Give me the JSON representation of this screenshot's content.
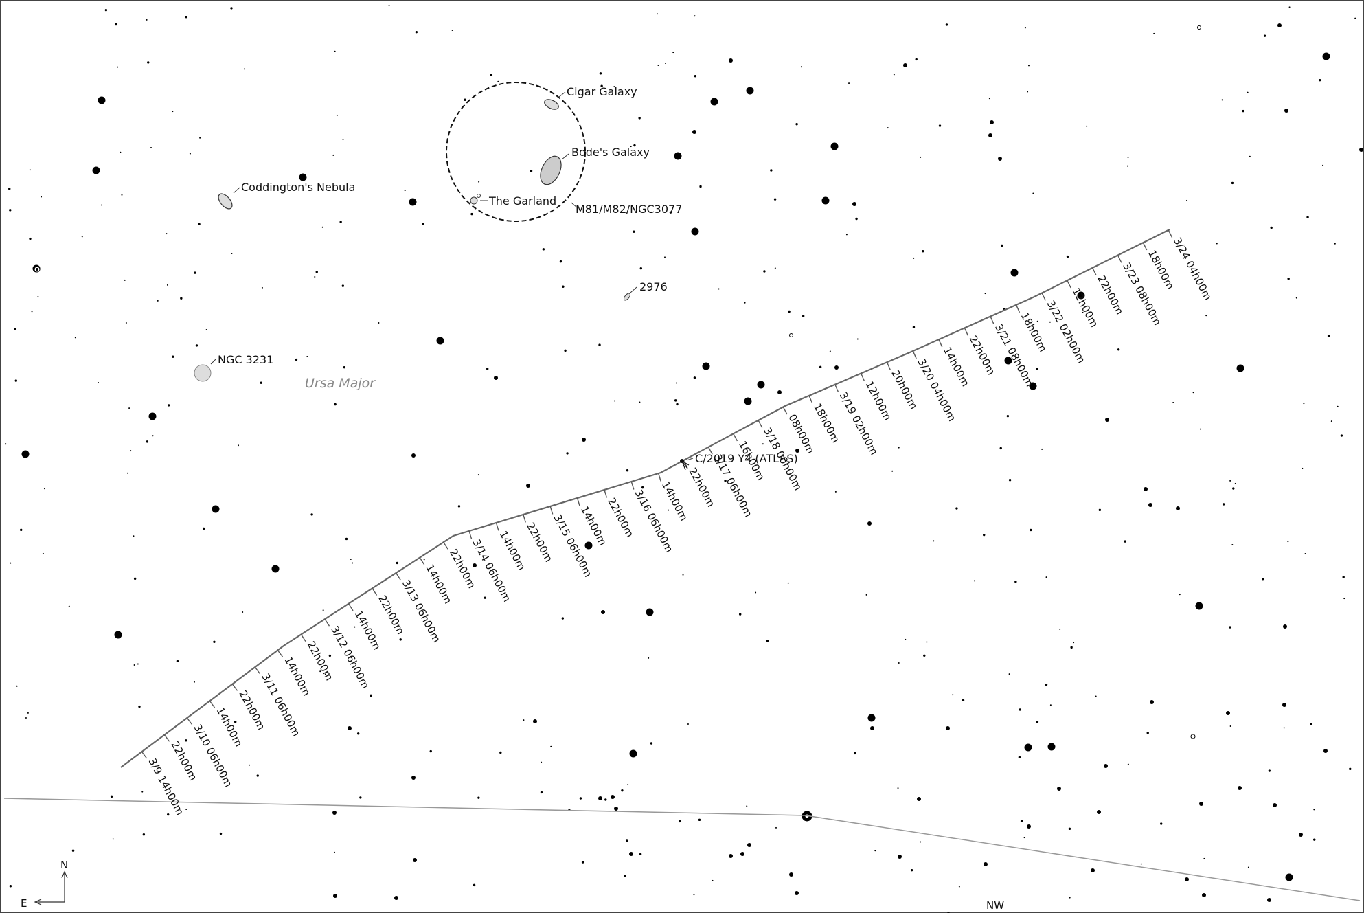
{
  "constellation": "Ursa Major",
  "comet": {
    "label": "C/2019 Y4 (ATLAS)"
  },
  "objects": [
    {
      "key": "cigar",
      "label": "Cigar Galaxy"
    },
    {
      "key": "bode",
      "label": "Bode's Galaxy"
    },
    {
      "key": "garland",
      "label": "The Garland"
    },
    {
      "key": "group",
      "label": "M81/M82/NGC3077"
    },
    {
      "key": "coddington",
      "label": "Coddington's Nebula"
    },
    {
      "key": "n2976",
      "label": "2976"
    },
    {
      "key": "n3231",
      "label": "NGC 3231"
    }
  ],
  "track_labels": [
    "3/9 14h00m",
    "22h00m",
    "3/10 06h00m",
    "14h00m",
    "22h00m",
    "3/11 06h00m",
    "14h00m",
    "22h00m",
    "3/12 06h00m",
    "14h00m",
    "22h00m",
    "3/13 06h00m",
    "14h00m",
    "22h00m",
    "3/14 06h00m",
    "14h00m",
    "22h00m",
    "3/15 06h00m",
    "14h00m",
    "22h00m",
    "3/16 06h00m",
    "14h00m",
    "22h00m",
    "3/17 06h00m",
    "16h00m",
    "3/18 00h00m",
    "08h00m",
    "18h00m",
    "3/19 02h00m",
    "12h00m",
    "20h00m",
    "3/20 04h00m",
    "14h00m",
    "22h00m",
    "3/21 08h00m",
    "18h00m",
    "3/22 02h00m",
    "12h00m",
    "22h00m",
    "3/23 08h00m",
    "18h00m",
    "3/24 04h00m"
  ],
  "compass": {
    "north": "N",
    "east": "E"
  },
  "horizon_label": "NW"
}
